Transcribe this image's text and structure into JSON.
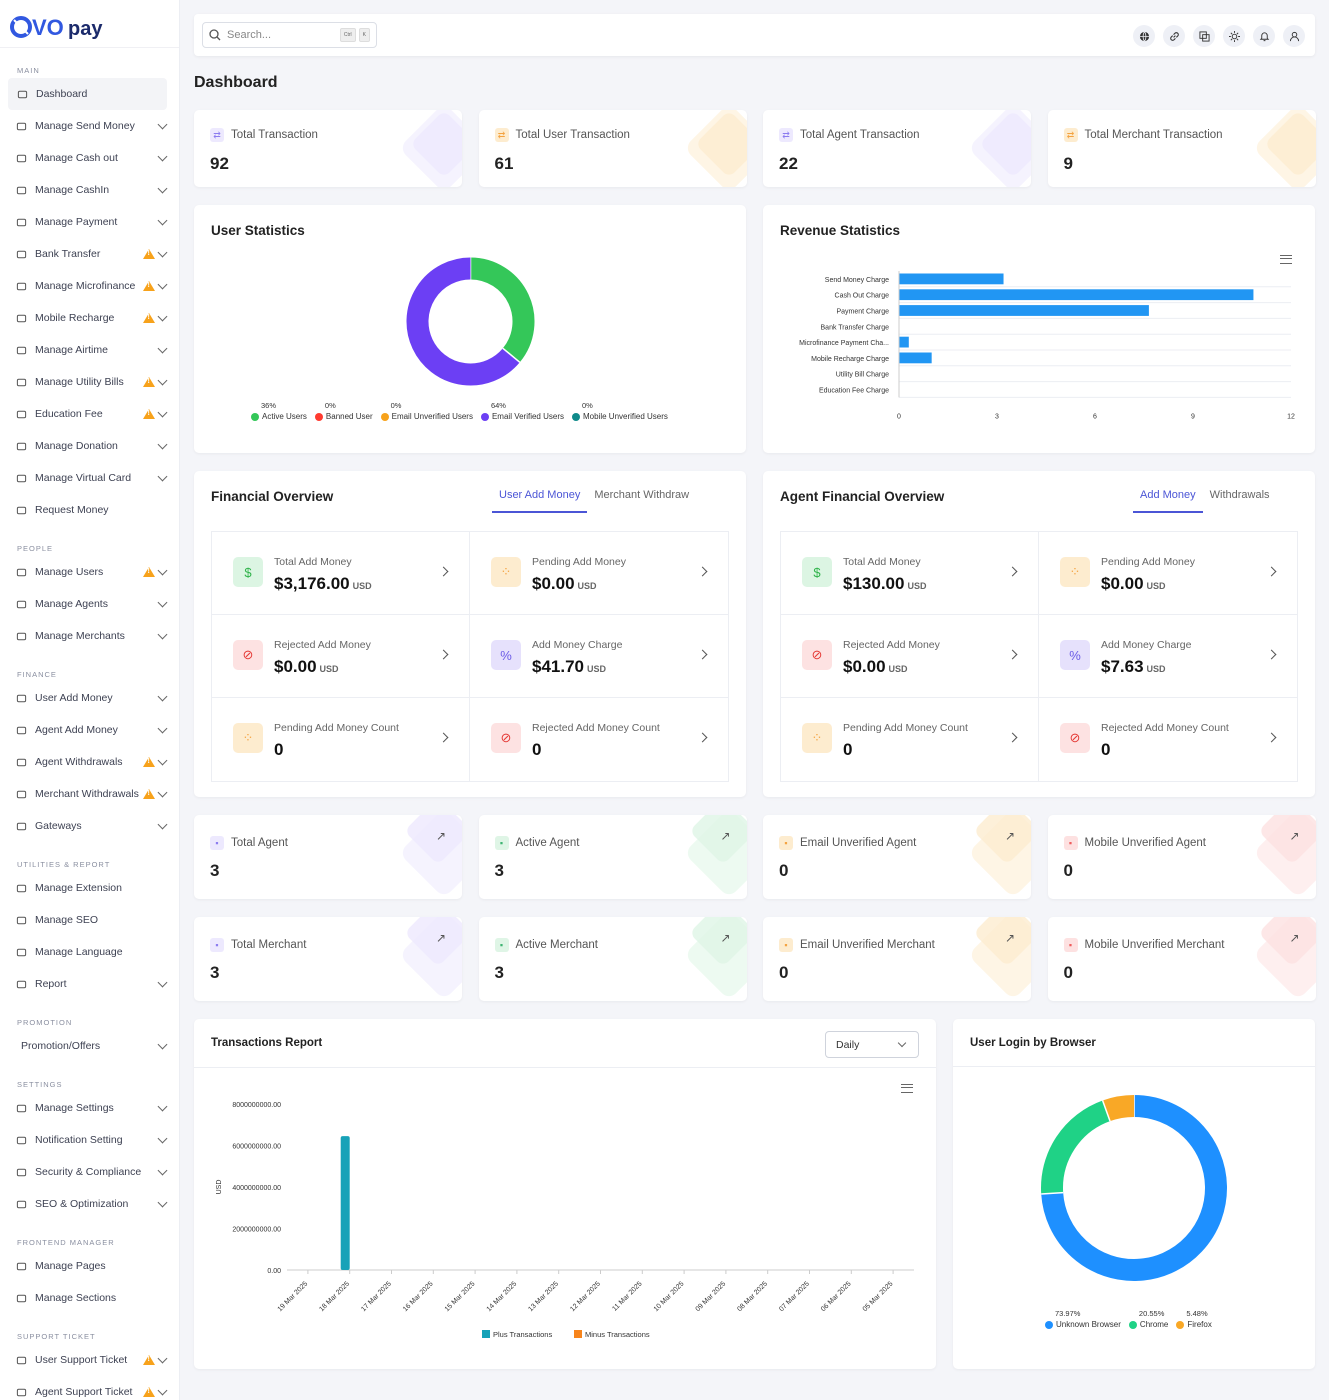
{
  "app": {
    "logo_text": "OVOpay",
    "search_placeholder": "Search...",
    "kbd1": "Ctrl",
    "kbd2": "K"
  },
  "colors": {
    "primary": "#4b55d6",
    "purple": "#6c3ff4",
    "green": "#34c759",
    "blue": "#1e90ff",
    "orange": "#f7a21b"
  },
  "sidebar": {
    "main_label": "MAIN",
    "main": [
      {
        "label": "Dashboard",
        "icon": "dashboard-icon",
        "active": true
      },
      {
        "label": "Manage Send Money",
        "icon": "send-icon",
        "chev": true
      },
      {
        "label": "Manage Cash out",
        "icon": "cashout-icon",
        "chev": true
      },
      {
        "label": "Manage CashIn",
        "icon": "cashin-icon",
        "chev": true
      },
      {
        "label": "Manage Payment",
        "icon": "payment-icon",
        "chev": true
      },
      {
        "label": "Bank Transfer",
        "icon": "bank-icon",
        "warn": true,
        "chev": true
      },
      {
        "label": "Manage Microfinance",
        "icon": "microfinance-icon",
        "warn": true,
        "chev": true
      },
      {
        "label": "Mobile Recharge",
        "icon": "mobile-icon",
        "warn": true,
        "chev": true
      },
      {
        "label": "Manage Airtime",
        "icon": "airtime-icon",
        "chev": true
      },
      {
        "label": "Manage Utility Bills",
        "icon": "bill-icon",
        "warn": true,
        "chev": true
      },
      {
        "label": "Education Fee",
        "icon": "education-icon",
        "warn": true,
        "chev": true
      },
      {
        "label": "Manage Donation",
        "icon": "donation-icon",
        "chev": true
      },
      {
        "label": "Manage Virtual Card",
        "icon": "card-icon",
        "chev": true
      },
      {
        "label": "Request Money",
        "icon": "request-icon"
      }
    ],
    "people_label": "PEOPLE",
    "people": [
      {
        "label": "Manage Users",
        "icon": "users-icon",
        "warn": true,
        "chev": true
      },
      {
        "label": "Manage Agents",
        "icon": "agents-icon",
        "chev": true
      },
      {
        "label": "Manage Merchants",
        "icon": "merchants-icon",
        "chev": true
      }
    ],
    "finance_label": "FINANCE",
    "finance": [
      {
        "label": "User Add Money",
        "icon": "plus-circle-icon",
        "chev": true
      },
      {
        "label": "Agent Add Money",
        "icon": "plus-circle-icon",
        "chev": true
      },
      {
        "label": "Agent Withdrawals",
        "icon": "withdraw-icon",
        "warn": true,
        "chev": true
      },
      {
        "label": "Merchant Withdrawals",
        "icon": "withdraw-icon",
        "warn": true,
        "chev": true
      },
      {
        "label": "Gateways",
        "icon": "gateway-icon",
        "chev": true
      }
    ],
    "utilities_label": "UTILITIES & REPORT",
    "utilities": [
      {
        "label": "Manage Extension",
        "icon": "extension-icon"
      },
      {
        "label": "Manage SEO",
        "icon": "seo-icon"
      },
      {
        "label": "Manage Language",
        "icon": "language-icon"
      },
      {
        "label": "Report",
        "icon": "report-icon",
        "chev": true
      }
    ],
    "promotion_label": "PROMOTION",
    "promotion": [
      {
        "label": "Promotion/Offers",
        "icon": "",
        "chev": true
      }
    ],
    "settings_label": "SETTINGS",
    "settings": [
      {
        "label": "Manage Settings",
        "icon": "settings-icon",
        "chev": true
      },
      {
        "label": "Notification Setting",
        "icon": "bell-icon",
        "chev": true
      },
      {
        "label": "Security & Compliance",
        "icon": "security-icon",
        "chev": true
      },
      {
        "label": "SEO & Optimization",
        "icon": "search-icon",
        "chev": true
      }
    ],
    "frontend_label": "FRONTEND MANAGER",
    "frontend": [
      {
        "label": "Manage Pages",
        "icon": "pages-icon"
      },
      {
        "label": "Manage Sections",
        "icon": "sections-icon"
      }
    ],
    "support_label": "SUPPORT TICKET",
    "support": [
      {
        "label": "User Support Ticket",
        "icon": "ticket-icon",
        "warn": true,
        "chev": true
      },
      {
        "label": "Agent Support Ticket",
        "icon": "ticket-icon",
        "warn": true,
        "chev": true
      }
    ]
  },
  "page_title": "Dashboard",
  "stats": [
    {
      "label": "Total Transaction",
      "value": "92",
      "color": "#8c7cf0",
      "bg": "#ede9fe"
    },
    {
      "label": "Total User Transaction",
      "value": "61",
      "color": "#f4a340",
      "bg": "#fdeccf"
    },
    {
      "label": "Total Agent Transaction",
      "value": "22",
      "color": "#8c7cf0",
      "bg": "#ede9fe"
    },
    {
      "label": "Total Merchant Transaction",
      "value": "9",
      "color": "#f4a340",
      "bg": "#fdeccf"
    }
  ],
  "user_stats": {
    "title": "User Statistics",
    "legend": [
      {
        "name": "Active Users",
        "pct": "36%",
        "color": "#34c759",
        "value": 36
      },
      {
        "name": "Banned User",
        "pct": "0%",
        "color": "#ff3b30",
        "value": 0
      },
      {
        "name": "Email Unverified Users",
        "pct": "0%",
        "color": "#f7a21b",
        "value": 0
      },
      {
        "name": "Email Verified Users",
        "pct": "64%",
        "color": "#6c3ff4",
        "value": 64
      },
      {
        "name": "Mobile Unverified Users",
        "pct": "0%",
        "color": "#0f8a8a",
        "value": 0
      }
    ]
  },
  "revenue": {
    "title": "Revenue Statistics"
  },
  "financial": {
    "title": "Financial Overview",
    "tab1": "User Add Money",
    "tab2": "Merchant Withdraw",
    "cells": [
      {
        "label": "Total Add Money",
        "value": "$3,176.00",
        "unit": "USD",
        "icon": "money-hand-icon",
        "color": "#2fb34a",
        "bg": "#dcf5e3",
        "glyph": "$"
      },
      {
        "label": "Pending Add Money",
        "value": "$0.00",
        "unit": "USD",
        "icon": "pending-icon",
        "color": "#f4a340",
        "bg": "#fdeccf",
        "glyph": "⁘"
      },
      {
        "label": "Rejected Add Money",
        "value": "$0.00",
        "unit": "USD",
        "icon": "rejected-icon",
        "color": "#e53935",
        "bg": "#fde2e2",
        "glyph": "⊘"
      },
      {
        "label": "Add Money Charge",
        "value": "$41.70",
        "unit": "USD",
        "icon": "percent-icon",
        "color": "#6c5ce7",
        "bg": "#e6e1fc",
        "glyph": "%"
      },
      {
        "label": "Pending Add Money Count",
        "value": "0",
        "unit": "",
        "icon": "pending-icon",
        "color": "#f4a340",
        "bg": "#fdeccf",
        "glyph": "⁘"
      },
      {
        "label": "Rejected Add Money Count",
        "value": "0",
        "unit": "",
        "icon": "rejected-icon",
        "color": "#e53935",
        "bg": "#fde2e2",
        "glyph": "⊘"
      }
    ]
  },
  "agent_financial": {
    "title": "Agent Financial Overview",
    "tab1": "Add Money",
    "tab2": "Withdrawals",
    "cells": [
      {
        "label": "Total Add Money",
        "value": "$130.00",
        "unit": "USD",
        "icon": "money-hand-icon",
        "color": "#2fb34a",
        "bg": "#dcf5e3",
        "glyph": "$"
      },
      {
        "label": "Pending Add Money",
        "value": "$0.00",
        "unit": "USD",
        "icon": "pending-icon",
        "color": "#f4a340",
        "bg": "#fdeccf",
        "glyph": "⁘"
      },
      {
        "label": "Rejected Add Money",
        "value": "$0.00",
        "unit": "USD",
        "icon": "rejected-icon",
        "color": "#e53935",
        "bg": "#fde2e2",
        "glyph": "⊘"
      },
      {
        "label": "Add Money Charge",
        "value": "$7.63",
        "unit": "USD",
        "icon": "percent-icon",
        "color": "#6c5ce7",
        "bg": "#e6e1fc",
        "glyph": "%"
      },
      {
        "label": "Pending Add Money Count",
        "value": "0",
        "unit": "",
        "icon": "pending-icon",
        "color": "#f4a340",
        "bg": "#fdeccf",
        "glyph": "⁘"
      },
      {
        "label": "Rejected Add Money Count",
        "value": "0",
        "unit": "",
        "icon": "rejected-icon",
        "color": "#e53935",
        "bg": "#fde2e2",
        "glyph": "⊘"
      }
    ]
  },
  "agent_stats": [
    {
      "label": "Total Agent",
      "value": "3",
      "color": "#8c7cf0",
      "bg": "#ede9fe"
    },
    {
      "label": "Active Agent",
      "value": "3",
      "color": "#3cb371",
      "bg": "#dff5e6"
    },
    {
      "label": "Email Unverified Agent",
      "value": "0",
      "color": "#f4a340",
      "bg": "#fdeccf"
    },
    {
      "label": "Mobile Unverified Agent",
      "value": "0",
      "color": "#ef5b5b",
      "bg": "#fde1e1"
    }
  ],
  "merchant_stats": [
    {
      "label": "Total Merchant",
      "value": "3",
      "color": "#8c7cf0",
      "bg": "#ede9fe"
    },
    {
      "label": "Active Merchant",
      "value": "3",
      "color": "#3cb371",
      "bg": "#dff5e6"
    },
    {
      "label": "Email Unverified Merchant",
      "value": "0",
      "color": "#f4a340",
      "bg": "#fdeccf"
    },
    {
      "label": "Mobile Unverified Merchant",
      "value": "0",
      "color": "#ef5b5b",
      "bg": "#fde1e1"
    }
  ],
  "transactions": {
    "title": "Transactions Report",
    "select": "Daily",
    "ylabel": "USD"
  },
  "browser": {
    "title": "User Login by Browser"
  },
  "chart_data": [
    {
      "type": "pie",
      "title": "User Statistics",
      "categories": [
        "Active Users",
        "Banned User",
        "Email Unverified Users",
        "Email Verified Users",
        "Mobile Unverified Users"
      ],
      "values": [
        36,
        0,
        0,
        64,
        0
      ],
      "legend": "bottom"
    },
    {
      "type": "bar",
      "title": "Revenue Statistics",
      "orientation": "horizontal",
      "categories": [
        "Send Money Charge",
        "Cash Out Charge",
        "Payment Charge",
        "Bank Transfer Charge",
        "Microfinance Payment Cha...",
        "Mobile Recharge Charge",
        "Utility Bill Charge",
        "Education Fee Charge"
      ],
      "values": [
        3.2,
        10.85,
        7.65,
        0,
        0.3,
        1.0,
        0,
        0
      ],
      "xlim": [
        0,
        12
      ],
      "xticks": [
        "0",
        "3",
        "6",
        "9",
        "12"
      ],
      "color": "#2196f3",
      "grid": true
    },
    {
      "type": "bar",
      "title": "Transactions Report",
      "categories": [
        "19 Mar 2025",
        "18 Mar 2025",
        "17 Mar 2025",
        "16 Mar 2025",
        "15 Mar 2025",
        "14 Mar 2025",
        "13 Mar 2025",
        "12 Mar 2025",
        "11 Mar 2025",
        "10 Mar 2025",
        "09 Mar 2025",
        "08 Mar 2025",
        "07 Mar 2025",
        "06 Mar 2025",
        "05 Mar 2025"
      ],
      "series": [
        {
          "name": "Plus Transactions",
          "color": "#17a2b8",
          "values": [
            0,
            6450000000,
            0,
            0,
            0,
            0,
            0,
            0,
            0,
            0,
            0,
            0,
            0,
            0,
            0
          ]
        },
        {
          "name": "Minus Transactions",
          "color": "#f7841b",
          "values": [
            0,
            0,
            0,
            0,
            0,
            0,
            0,
            0,
            0,
            0,
            0,
            0,
            0,
            0,
            0
          ]
        }
      ],
      "yticks": [
        "0.00",
        "2000000000.00",
        "4000000000.00",
        "6000000000.00",
        "8000000000.00"
      ],
      "ylim": [
        0,
        8000000000
      ],
      "ylabel": "USD",
      "legend": "bottom"
    },
    {
      "type": "pie",
      "title": "User Login by Browser",
      "categories": [
        "Unknown Browser",
        "Chrome",
        "Firefox"
      ],
      "values": [
        73.97,
        20.55,
        5.48
      ],
      "labels": [
        "73.97%",
        "20.55%",
        "5.48%"
      ],
      "colors": [
        "#1e90ff",
        "#1fd286",
        "#f9a826"
      ],
      "legend": "bottom"
    }
  ]
}
